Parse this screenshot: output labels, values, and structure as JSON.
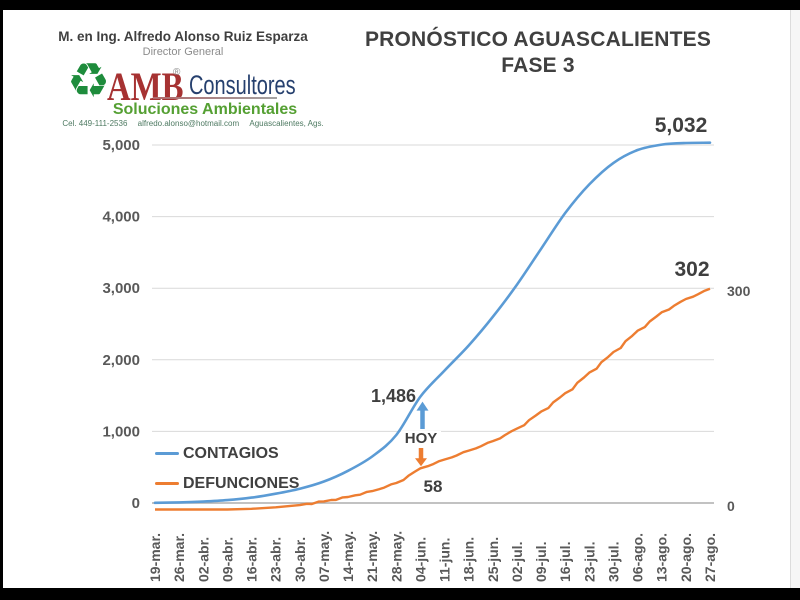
{
  "header": {
    "author": "M. en Ing. Alfredo Alonso Ruiz Esparza",
    "role": "Director General",
    "brand": {
      "name": "AMB",
      "registered": "®",
      "suffix": "Consultores",
      "tagline": "Soluciones Ambientales",
      "phone": "Cel. 449-111-2536",
      "email": "alfredo.alonso@hotmail.com",
      "location": "Aguascalientes, Ags."
    }
  },
  "title": {
    "line1": "PRONÓSTICO AGUASCALIENTES",
    "line2": "FASE 3"
  },
  "legend": {
    "items": [
      {
        "label": "CONTAGIOS",
        "color": "#5B9BD5"
      },
      {
        "label": "DEFUNCIONES",
        "color": "#ED7D31"
      }
    ]
  },
  "colors": {
    "brand_red": "#A63232",
    "brand_navy": "#26406E",
    "brand_green": "#55A033",
    "axis_text": "#595959",
    "grid": "#D9D9D9",
    "axis_line": "#ADADAD",
    "annotation_text": "#3F3F3F"
  },
  "chart_data": {
    "type": "line",
    "title": "PRONÓSTICO AGUASCALIENTES FASE 3",
    "x_labels": [
      "19-mar.",
      "26-mar.",
      "02-abr.",
      "09-abr.",
      "16-abr.",
      "23-abr.",
      "30-abr.",
      "07-may.",
      "14-may.",
      "21-may.",
      "28-may.",
      "04-jun.",
      "11-jun.",
      "18-jun.",
      "25-jun.",
      "02-jul.",
      "09-jul.",
      "16-jul.",
      "23-jul.",
      "30-jul.",
      "06-ago.",
      "13-ago.",
      "20-ago.",
      "27-ago."
    ],
    "series": [
      {
        "name": "CONTAGIOS",
        "color": "#5B9BD5",
        "axis": "left",
        "values": [
          3,
          8,
          20,
          40,
          75,
          130,
          200,
          300,
          450,
          650,
          950,
          1486,
          1850,
          2200,
          2600,
          3050,
          3550,
          4050,
          4450,
          4750,
          4930,
          5005,
          5028,
          5032
        ]
      },
      {
        "name": "DEFUNCIONES",
        "color": "#ED7D31",
        "axis": "right",
        "values": [
          0,
          0,
          1,
          2,
          3,
          5,
          8,
          13,
          19,
          27,
          38,
          58,
          70,
          82,
          95,
          112,
          135,
          160,
          188,
          216,
          245,
          270,
          288,
          302
        ]
      }
    ],
    "left_axis": {
      "min": 0,
      "max": 5000,
      "step": 1000,
      "tick_labels": [
        "0",
        "1,000",
        "2,000",
        "3,000",
        "4,000",
        "5,000"
      ]
    },
    "right_axis": {
      "ticks": [
        {
          "value": 300,
          "label": "300"
        },
        {
          "value": 0,
          "label": "0"
        }
      ]
    },
    "grid": true,
    "legend_position": "inside-bottom-left",
    "today_index": 11,
    "annotations": {
      "contagios_final": "5,032",
      "defunciones_final": "302",
      "contagios_today": "1,486",
      "today": "HOY",
      "defunciones_today": "58"
    }
  }
}
